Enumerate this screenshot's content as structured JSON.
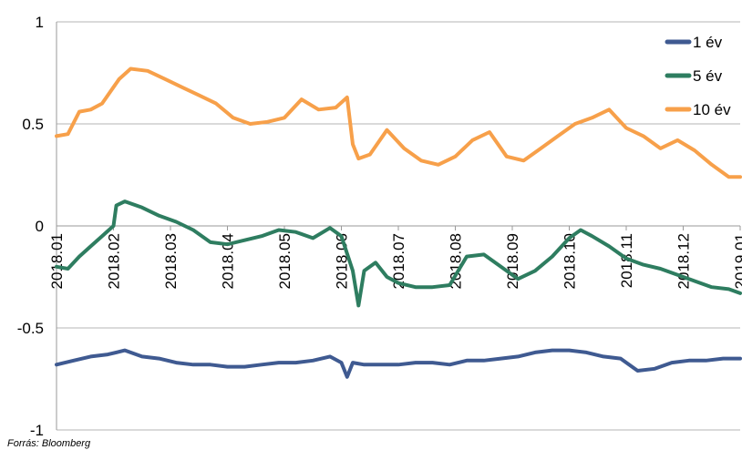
{
  "chart_data": {
    "type": "line",
    "ylim": [
      -1,
      1
    ],
    "y_ticks": [
      "1",
      "0.5",
      "0",
      "-0.5",
      "-1"
    ],
    "y_tick_values": [
      1,
      0.5,
      0,
      -0.5,
      -1
    ],
    "x_ticks": [
      "2018.01",
      "2018.02",
      "2018.03",
      "2018.04",
      "2018.05",
      "2018.06",
      "2018.07",
      "2018.08",
      "2018.09",
      "2018.10",
      "2018.11",
      "2018.12",
      "2019.01"
    ],
    "grid": "horizontal",
    "legend_position": "top-right",
    "series": [
      {
        "name": "1 év",
        "color": "#3F5A91",
        "x": [
          0,
          0.3,
          0.6,
          0.9,
          1.2,
          1.5,
          1.8,
          2.1,
          2.4,
          2.7,
          3.0,
          3.3,
          3.6,
          3.9,
          4.2,
          4.5,
          4.8,
          5.0,
          5.1,
          5.2,
          5.4,
          5.7,
          6.0,
          6.3,
          6.6,
          6.9,
          7.2,
          7.5,
          7.8,
          8.1,
          8.4,
          8.7,
          9.0,
          9.3,
          9.6,
          9.9,
          10.2,
          10.5,
          10.8,
          11.1,
          11.4,
          11.7,
          12.0
        ],
        "values": [
          -0.68,
          -0.66,
          -0.64,
          -0.63,
          -0.61,
          -0.64,
          -0.65,
          -0.67,
          -0.68,
          -0.68,
          -0.69,
          -0.69,
          -0.68,
          -0.67,
          -0.67,
          -0.66,
          -0.64,
          -0.67,
          -0.74,
          -0.67,
          -0.68,
          -0.68,
          -0.68,
          -0.67,
          -0.67,
          -0.68,
          -0.66,
          -0.66,
          -0.65,
          -0.64,
          -0.62,
          -0.61,
          -0.61,
          -0.62,
          -0.64,
          -0.65,
          -0.71,
          -0.7,
          -0.67,
          -0.66,
          -0.66,
          -0.65,
          -0.65
        ]
      },
      {
        "name": "5 év",
        "color": "#2E7D60",
        "x": [
          0,
          0.2,
          0.4,
          0.6,
          0.8,
          1.0,
          1.05,
          1.2,
          1.5,
          1.8,
          2.1,
          2.4,
          2.7,
          3.0,
          3.3,
          3.6,
          3.9,
          4.2,
          4.5,
          4.8,
          5.0,
          5.2,
          5.3,
          5.4,
          5.6,
          5.8,
          6.0,
          6.3,
          6.6,
          6.9,
          7.2,
          7.5,
          7.8,
          8.1,
          8.4,
          8.7,
          9.0,
          9.2,
          9.4,
          9.7,
          10.0,
          10.3,
          10.6,
          10.9,
          11.2,
          11.5,
          11.8,
          12.0
        ],
        "values": [
          -0.2,
          -0.21,
          -0.15,
          -0.1,
          -0.05,
          0.0,
          0.1,
          0.12,
          0.09,
          0.05,
          0.02,
          -0.02,
          -0.08,
          -0.09,
          -0.07,
          -0.05,
          -0.02,
          -0.03,
          -0.06,
          -0.01,
          -0.05,
          -0.22,
          -0.39,
          -0.22,
          -0.18,
          -0.25,
          -0.28,
          -0.3,
          -0.3,
          -0.29,
          -0.15,
          -0.14,
          -0.2,
          -0.26,
          -0.22,
          -0.15,
          -0.06,
          -0.02,
          -0.05,
          -0.1,
          -0.16,
          -0.19,
          -0.21,
          -0.24,
          -0.27,
          -0.3,
          -0.31,
          -0.33
        ]
      },
      {
        "name": "10 év",
        "color": "#F7A04A",
        "x": [
          0,
          0.2,
          0.4,
          0.6,
          0.8,
          1.0,
          1.1,
          1.3,
          1.6,
          1.9,
          2.2,
          2.5,
          2.8,
          3.1,
          3.4,
          3.7,
          4.0,
          4.3,
          4.6,
          4.9,
          5.1,
          5.2,
          5.3,
          5.5,
          5.8,
          6.1,
          6.4,
          6.7,
          7.0,
          7.3,
          7.6,
          7.9,
          8.2,
          8.5,
          8.8,
          9.1,
          9.4,
          9.7,
          10.0,
          10.3,
          10.6,
          10.9,
          11.2,
          11.5,
          11.8,
          12.0
        ],
        "values": [
          0.44,
          0.45,
          0.56,
          0.57,
          0.6,
          0.68,
          0.72,
          0.77,
          0.76,
          0.72,
          0.68,
          0.64,
          0.6,
          0.53,
          0.5,
          0.51,
          0.53,
          0.62,
          0.57,
          0.58,
          0.63,
          0.4,
          0.33,
          0.35,
          0.47,
          0.38,
          0.32,
          0.3,
          0.34,
          0.42,
          0.46,
          0.34,
          0.32,
          0.38,
          0.44,
          0.5,
          0.53,
          0.57,
          0.48,
          0.44,
          0.38,
          0.42,
          0.37,
          0.3,
          0.24,
          0.24
        ]
      }
    ]
  },
  "source_note": "Forrás: Bloomberg"
}
